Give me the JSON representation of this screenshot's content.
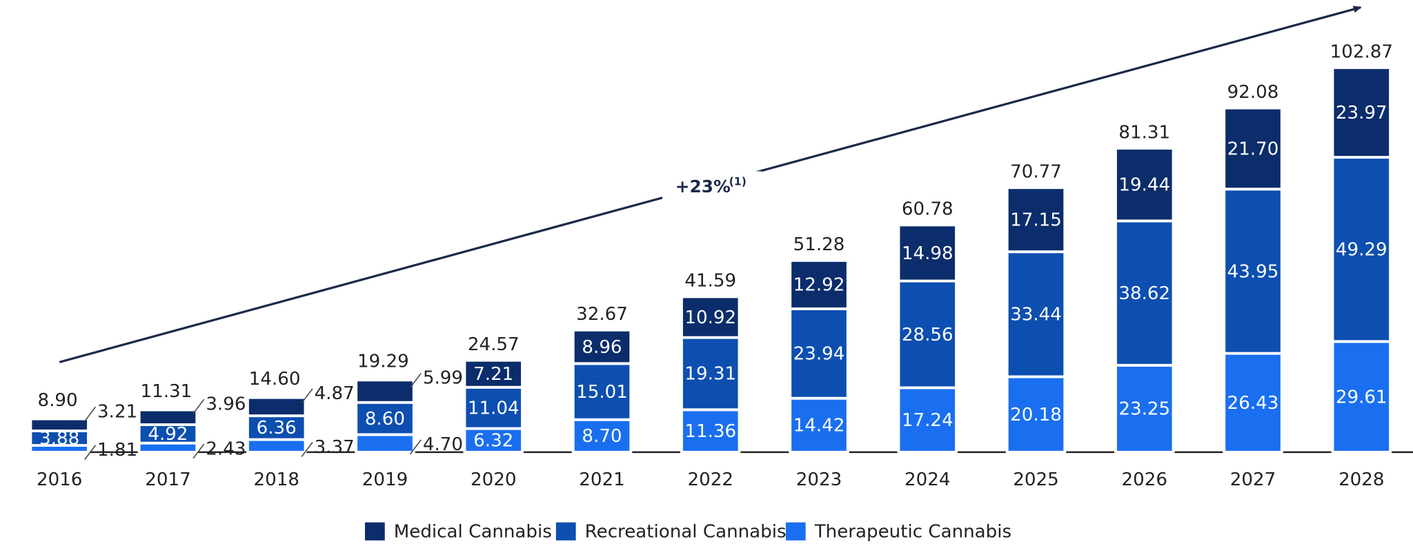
{
  "chart_data": {
    "type": "stacked_bar",
    "annotation": "+23%",
    "annotation_note": "(1)",
    "categories": [
      "2016",
      "2017",
      "2018",
      "2019",
      "2020",
      "2021",
      "2022",
      "2023",
      "2024",
      "2025",
      "2026",
      "2027",
      "2028"
    ],
    "series": [
      {
        "name": "Therapeutic Cannabis",
        "color": "#1a6ff0",
        "values": [
          1.81,
          2.43,
          3.37,
          4.7,
          6.32,
          8.7,
          11.36,
          14.42,
          17.24,
          20.18,
          23.25,
          26.43,
          29.61
        ],
        "value_labels": [
          "1.81",
          "2.43",
          "3.37",
          "4.70",
          "6.32",
          "8.70",
          "11.36",
          "14.42",
          "17.24",
          "20.18",
          "23.25",
          "26.43",
          "29.61"
        ]
      },
      {
        "name": "Recreational Cannabis",
        "color": "#0d4fb0",
        "values": [
          3.88,
          4.92,
          6.36,
          8.6,
          11.04,
          15.01,
          19.31,
          23.94,
          28.56,
          33.44,
          38.62,
          43.95,
          49.29
        ],
        "value_labels": [
          "3.88",
          "4.92",
          "6.36",
          "8.60",
          "11.04",
          "15.01",
          "19.31",
          "23.94",
          "28.56",
          "33.44",
          "38.62",
          "43.95",
          "49.29"
        ]
      },
      {
        "name": "Medical Cannabis",
        "color": "#0b2d6b",
        "values": [
          3.21,
          3.96,
          4.87,
          5.99,
          7.21,
          8.96,
          10.92,
          12.92,
          14.98,
          17.15,
          19.44,
          21.7,
          23.97
        ],
        "value_labels": [
          "3.21",
          "3.96",
          "4.87",
          "5.99",
          "7.21",
          "8.96",
          "10.92",
          "12.92",
          "14.98",
          "17.15",
          "19.44",
          "21.70",
          "23.97"
        ]
      }
    ],
    "totals": [
      8.9,
      11.31,
      14.6,
      19.29,
      24.57,
      32.67,
      41.59,
      51.28,
      60.78,
      70.77,
      81.31,
      92.08,
      102.87
    ],
    "total_labels": [
      "8.90",
      "11.31",
      "14.60",
      "19.29",
      "24.57",
      "32.67",
      "41.59",
      "51.28",
      "60.78",
      "70.77",
      "81.31",
      "92.08",
      "102.87"
    ],
    "legend": "bottom"
  }
}
